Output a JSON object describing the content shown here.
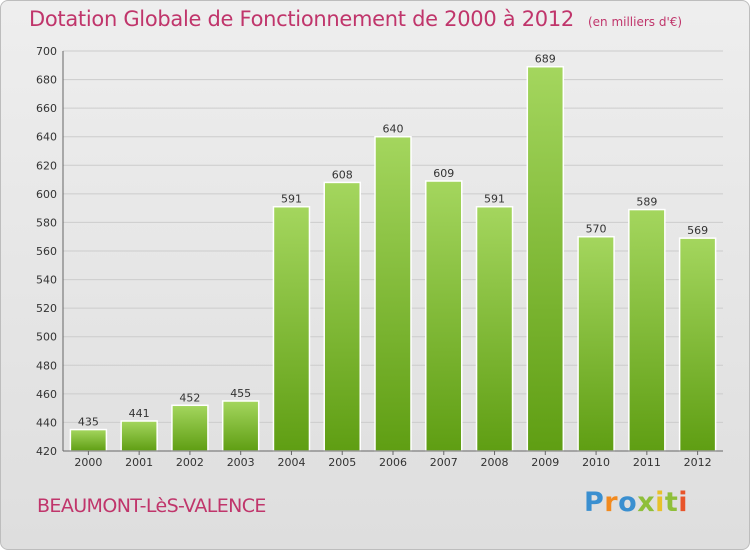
{
  "header": {
    "title": "Dotation Globale de Fonctionnement de 2000 à 2012",
    "subtitle": "(en milliers d'€)"
  },
  "footer": {
    "commune": "BEAUMONT-LèS-VALENCE",
    "brand": "Proxiti",
    "brand_letter_colors": [
      "#3a8fd0",
      "#f28a1e",
      "#3a8fd0",
      "#8fbf3a",
      "#e8c12a",
      "#8fbf3a",
      "#e8542a"
    ]
  },
  "colors": {
    "bar_light": "#a4d65e",
    "bar_dark": "#5f9e13",
    "accent": "#c0356b",
    "grid": "#cccccc"
  },
  "chart_data": {
    "type": "bar",
    "categories": [
      "2000",
      "2001",
      "2002",
      "2003",
      "2004",
      "2005",
      "2006",
      "2007",
      "2008",
      "2009",
      "2010",
      "2011",
      "2012"
    ],
    "values": [
      435,
      441,
      452,
      455,
      591,
      608,
      640,
      609,
      591,
      689,
      570,
      589,
      569
    ],
    "ylim": [
      420,
      700
    ],
    "yticks": [
      420,
      440,
      460,
      480,
      500,
      520,
      540,
      560,
      580,
      600,
      620,
      640,
      660,
      680,
      700
    ],
    "grid": true
  }
}
